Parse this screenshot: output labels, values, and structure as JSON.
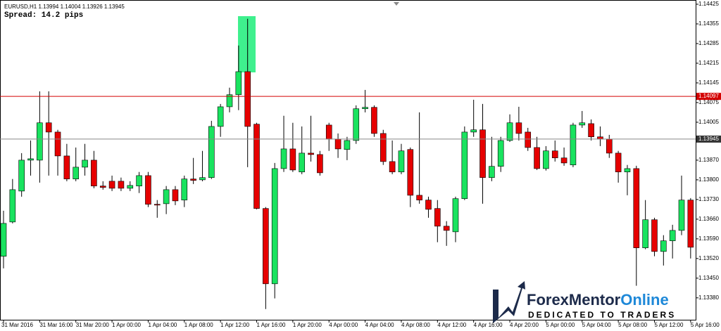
{
  "chart_data": {
    "type": "candlestick",
    "title": "EURUSD,H1 1.13994 1.14004 1.13926 1.13945",
    "subtitle": "Spread: 14.2 pips",
    "categories": [
      "31 Mar 2016",
      null,
      null,
      null,
      "31 Mar 16:00",
      null,
      null,
      null,
      "31 Mar 20:00",
      null,
      null,
      null,
      "1 Apr 00:00",
      null,
      null,
      null,
      "1 Apr 04:00",
      null,
      null,
      null,
      "1 Apr 08:00",
      null,
      null,
      null,
      "1 Apr 12:00",
      null,
      null,
      null,
      "1 Apr 16:00",
      null,
      null,
      null,
      "1 Apr 20:00",
      null,
      null,
      null,
      "4 Apr 00:00",
      null,
      null,
      null,
      "4 Apr 04:00",
      null,
      null,
      null,
      "4 Apr 08:00",
      null,
      null,
      null,
      "4 Apr 12:00",
      null,
      null,
      null,
      "4 Apr 16:00",
      null,
      null,
      null,
      "4 Apr 20:00",
      null,
      null,
      null,
      "5 Apr 00:00",
      null,
      null,
      null,
      "5 Apr 04:00",
      null,
      null,
      null,
      "5 Apr 08:00",
      null,
      null,
      null,
      "5 Apr 12:00",
      null,
      null,
      null,
      "5 Apr 16:00"
    ],
    "open": [
      1.13528,
      1.1365,
      1.1376,
      1.1387,
      1.1387,
      1.14003,
      1.1397,
      1.13885,
      1.13803,
      1.13845,
      1.1387,
      1.13778,
      1.13795,
      1.13795,
      1.1377,
      1.13778,
      1.13815,
      1.13713,
      1.13715,
      1.13765,
      1.13728,
      1.13803,
      1.138,
      1.13808,
      1.1399,
      1.1406,
      1.14103,
      1.14185,
      1.13998,
      1.13698,
      1.1343,
      1.1384,
      1.1391,
      1.13828,
      1.13895,
      1.1389,
      1.13995,
      1.13945,
      1.13908,
      1.1394,
      1.14053,
      1.14058,
      1.13965,
      1.13865,
      1.13828,
      1.13908,
      1.13745,
      1.13728,
      1.13698,
      1.13635,
      1.13615,
      1.13733,
      1.1397,
      1.13978,
      1.13808,
      1.13848,
      1.1394,
      1.14003,
      1.1397,
      1.13915,
      1.1384,
      1.13903,
      1.13878,
      1.13853,
      1.13995,
      1.14,
      1.13953,
      1.13945,
      1.13895,
      1.13828,
      1.1384,
      1.13558,
      1.13658,
      1.13545,
      1.13583,
      1.1362,
      1.13728
    ],
    "high": [
      1.1369,
      1.13803,
      1.13895,
      1.1394,
      1.14115,
      1.14115,
      1.13978,
      1.13928,
      1.13915,
      1.13928,
      1.13903,
      1.13795,
      1.13815,
      1.13808,
      1.13795,
      1.13828,
      1.13828,
      1.13728,
      1.13778,
      1.13778,
      1.13815,
      1.13878,
      1.13903,
      1.1401,
      1.1407,
      1.14128,
      1.14278,
      1.14373,
      1.14003,
      1.13703,
      1.1386,
      1.14028,
      1.14003,
      1.1399,
      1.14028,
      1.13903,
      1.14003,
      1.13965,
      1.13953,
      1.14065,
      1.1412,
      1.14065,
      1.13978,
      1.1394,
      1.13928,
      1.13915,
      1.1404,
      1.1374,
      1.13728,
      1.13653,
      1.1374,
      1.1399,
      1.14085,
      1.1407,
      1.13953,
      1.13953,
      1.14033,
      1.1406,
      1.13985,
      1.13953,
      1.1392,
      1.1394,
      1.13915,
      1.14003,
      1.14045,
      1.14015,
      1.1399,
      1.1396,
      1.13903,
      1.13853,
      1.1385,
      1.13728,
      1.13665,
      1.13603,
      1.1364,
      1.13815,
      1.13735
    ],
    "low": [
      1.13485,
      1.13645,
      1.1374,
      1.13815,
      1.1379,
      1.13815,
      1.13815,
      1.13795,
      1.13795,
      1.13815,
      1.1377,
      1.13765,
      1.1376,
      1.1376,
      1.1376,
      1.13753,
      1.13703,
      1.13665,
      1.13678,
      1.1371,
      1.13703,
      1.13785,
      1.13795,
      1.13803,
      1.13953,
      1.1404,
      1.14048,
      1.13845,
      1.13695,
      1.1334,
      1.13378,
      1.13828,
      1.13828,
      1.1382,
      1.13865,
      1.13815,
      1.13903,
      1.13878,
      1.1387,
      1.13928,
      1.1404,
      1.13953,
      1.13853,
      1.1382,
      1.1382,
      1.13703,
      1.13715,
      1.13665,
      1.13578,
      1.13565,
      1.13578,
      1.13728,
      1.13953,
      1.13715,
      1.13795,
      1.13828,
      1.13935,
      1.1394,
      1.13903,
      1.13835,
      1.13833,
      1.13865,
      1.1385,
      1.13845,
      1.13985,
      1.1394,
      1.1392,
      1.13878,
      1.1379,
      1.13745,
      1.13423,
      1.13553,
      1.13528,
      1.13495,
      1.1352,
      1.13603,
      1.1352
    ],
    "close": [
      1.13645,
      1.13765,
      1.1387,
      1.13875,
      1.14003,
      1.1397,
      1.13885,
      1.13803,
      1.13845,
      1.1387,
      1.13778,
      1.13773,
      1.1377,
      1.1377,
      1.1378,
      1.13815,
      1.13713,
      1.1371,
      1.13765,
      1.13725,
      1.13803,
      1.13798,
      1.13808,
      1.1399,
      1.1406,
      1.14103,
      1.14185,
      1.1399,
      1.13698,
      1.1343,
      1.1384,
      1.1391,
      1.13835,
      1.13895,
      1.1389,
      1.13825,
      1.13945,
      1.1391,
      1.1394,
      1.14053,
      1.14058,
      1.13965,
      1.13865,
      1.13828,
      1.13903,
      1.13745,
      1.13728,
      1.13695,
      1.13635,
      1.1362,
      1.13733,
      1.1397,
      1.13978,
      1.13808,
      1.13848,
      1.1394,
      1.14003,
      1.13965,
      1.13915,
      1.1384,
      1.13903,
      1.13878,
      1.1386,
      1.13995,
      1.14003,
      1.13953,
      1.13945,
      1.13895,
      1.13828,
      1.1384,
      1.13558,
      1.13658,
      1.13545,
      1.13583,
      1.1362,
      1.13728,
      1.1356
    ],
    "up_color": "#19e35f",
    "down_color": "#e60000",
    "ylim": [
      1.13302,
      1.1444
    ],
    "yticks": [
      1.14425,
      1.14355,
      1.14285,
      1.14215,
      1.14145,
      1.14075,
      1.14005,
      {
        "value": 1.1387,
        "label": "1.13870"
      },
      {
        "value": 1.138,
        "label": "1.13800"
      },
      {
        "value": 1.1373,
        "label": "1.13730"
      },
      {
        "value": 1.1366,
        "label": "1.13660"
      },
      {
        "value": 1.1359,
        "label": "1.13590"
      },
      {
        "value": 1.1352,
        "label": "1.13520"
      },
      {
        "value": 1.1345,
        "label": "1.13450"
      },
      {
        "value": 1.1338,
        "label": "1.13380"
      }
    ],
    "price_lines": [
      {
        "value": 1.14097,
        "color": "#d40000"
      },
      {
        "value": 1.13945,
        "color": "#888888"
      }
    ]
  },
  "watermark": {
    "name": [
      "ForexMentor",
      "Online"
    ],
    "tagline": "DEDICATED TO TRADERS"
  }
}
